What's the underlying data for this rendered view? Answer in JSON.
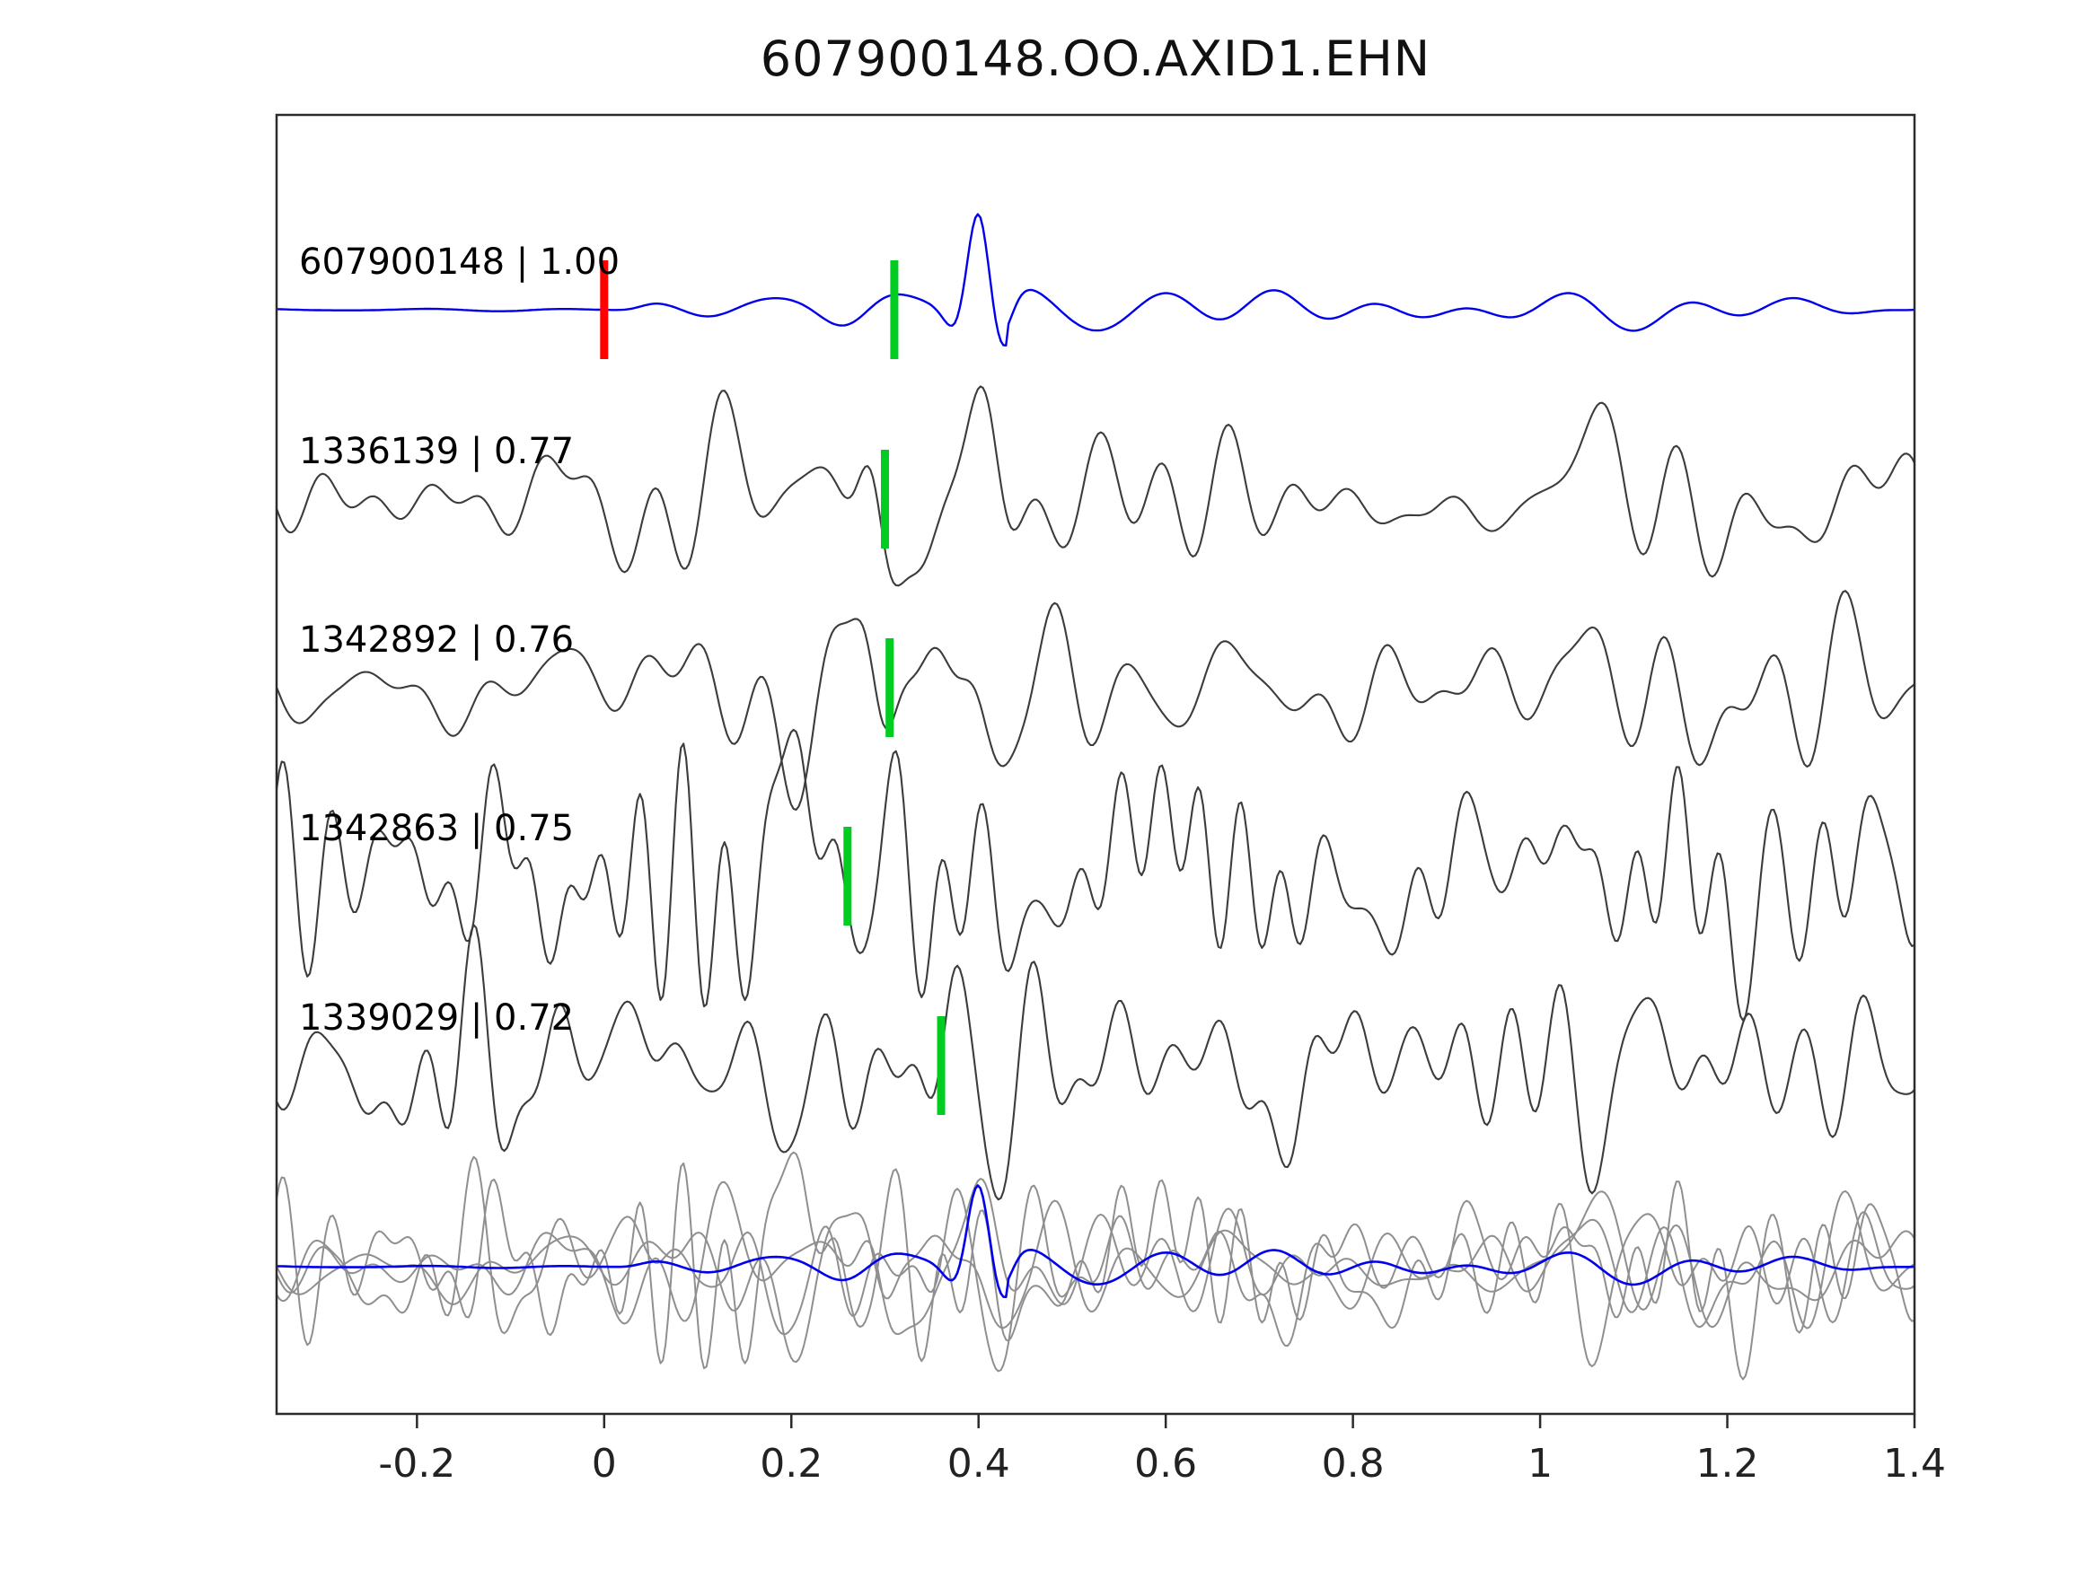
{
  "title": "607900148.OO.AXID1.EHN",
  "chart_data": {
    "type": "line",
    "title": "607900148.OO.AXID1.EHN",
    "xlabel": "",
    "ylabel": "",
    "xlim": [
      -0.35,
      1.4
    ],
    "xticks": [
      -0.2,
      0,
      0.2,
      0.4,
      0.6,
      0.8,
      1,
      1.2,
      1.4
    ],
    "xtick_labels": [
      "-0.2",
      "0",
      "0.2",
      "0.4",
      "0.6",
      "0.8",
      "1",
      "1.2",
      "1.4"
    ],
    "grid": false,
    "legend": "none",
    "description": "Template-matching seismic waveform figure: top blue trace is the template event, four dark-gray traces are matched detections labeled 'event_id | correlation', bottom row overlays all matched traces (gray) with the template (blue). Red bar marks t=0 on the template; green bars mark pick times on each trace. Main seismic arrival near t=0.40.",
    "colors": {
      "template": "#0000ee",
      "match": "#3c3c3c",
      "overlay_match": "#8f8f8f",
      "pick_marker": "#00cc22",
      "origin_marker": "#ff0000",
      "axis": "#2b2b2b",
      "tick_text": "#222222",
      "label_text": "#000000"
    },
    "event_arrival_time": 0.4,
    "traces": [
      {
        "label": "607900148 | 1.00",
        "event_id": "607900148",
        "correlation": 1.0,
        "kind": "template",
        "color_role": "template",
        "markers": [
          {
            "x": 0.0,
            "role": "origin_marker"
          },
          {
            "x": 0.31,
            "role": "pick_marker"
          }
        ]
      },
      {
        "label": "1336139 | 0.77",
        "event_id": "1336139",
        "correlation": 0.77,
        "kind": "match",
        "color_role": "match",
        "markers": [
          {
            "x": 0.3,
            "role": "pick_marker"
          }
        ]
      },
      {
        "label": "1342892 | 0.76",
        "event_id": "1342892",
        "correlation": 0.76,
        "kind": "match",
        "color_role": "match",
        "markers": [
          {
            "x": 0.305,
            "role": "pick_marker"
          }
        ]
      },
      {
        "label": "1342863 | 0.75",
        "event_id": "1342863",
        "correlation": 0.75,
        "kind": "match",
        "color_role": "match",
        "markers": [
          {
            "x": 0.26,
            "role": "pick_marker"
          }
        ]
      },
      {
        "label": "1339029 | 0.72",
        "event_id": "1339029",
        "correlation": 0.72,
        "kind": "match",
        "color_role": "match",
        "markers": [
          {
            "x": 0.36,
            "role": "pick_marker"
          }
        ]
      },
      {
        "label": "",
        "event_id": "",
        "kind": "stack_overlay",
        "color_role": "overlay_match",
        "markers": []
      }
    ]
  }
}
